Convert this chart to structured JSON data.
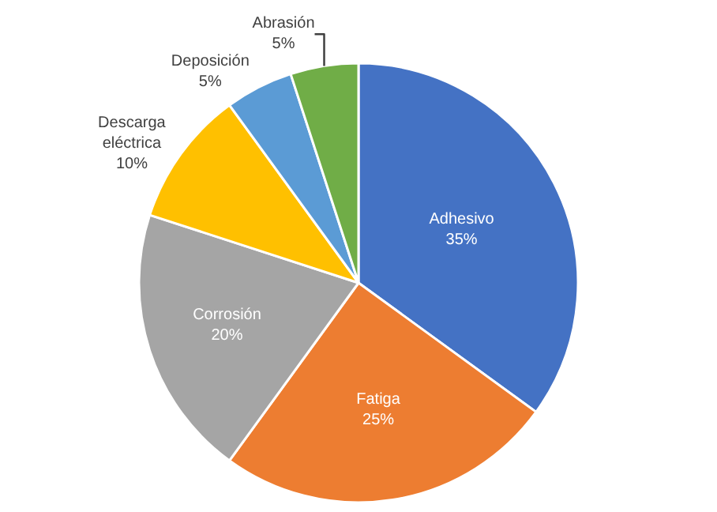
{
  "chart_data": {
    "type": "pie",
    "categories": [
      "Adhesivo",
      "Fatiga",
      "Corrosión",
      "Descarga eléctrica",
      "Deposición",
      "Abrasión"
    ],
    "values": [
      35,
      25,
      20,
      10,
      5,
      5
    ],
    "value_labels": [
      "35%",
      "25%",
      "20%",
      "10%",
      "5%",
      "5%"
    ],
    "colors": [
      "#4472c4",
      "#ed7d31",
      "#a5a5a5",
      "#ffc000",
      "#5b9bd5",
      "#70ad47"
    ],
    "legend": false
  }
}
